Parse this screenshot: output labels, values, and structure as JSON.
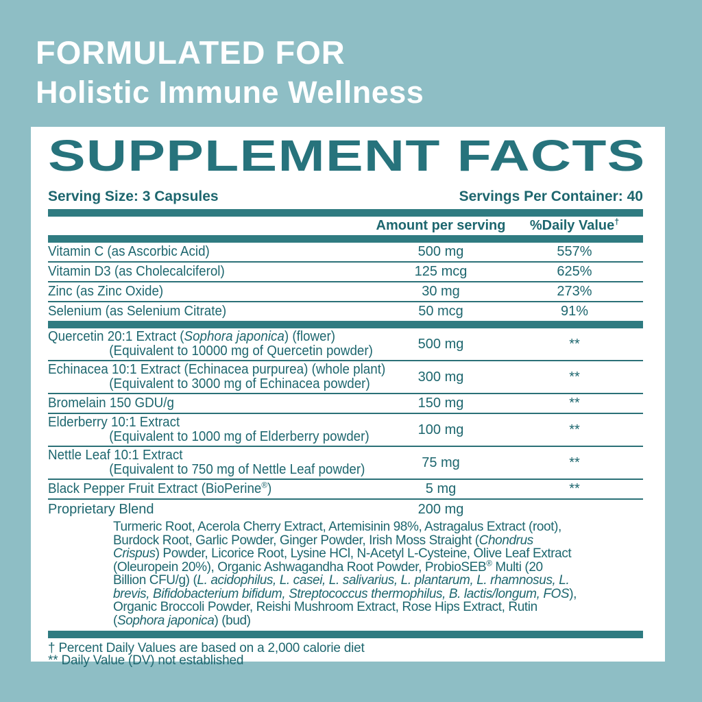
{
  "colors": {
    "background": "#8ebec5",
    "panel": "#ffffff",
    "text_teal": "#1d666e",
    "title_teal": "#27737c",
    "bar_teal": "#2f7b81"
  },
  "hero": {
    "line1": "FORMULATED FOR",
    "line2": "Holistic Immune Wellness"
  },
  "supplement_facts": {
    "title": "SUPPLEMENT FACTS",
    "serving_size": "Serving Size: 3 Capsules",
    "servings_per_container": "Servings Per Container: 40",
    "columns": {
      "amount": "Amount per serving",
      "daily_value": "%Daily Value",
      "daily_value_sup": "†"
    },
    "nutrients": [
      {
        "name_segs": [
          {
            "t": "Vitamin C (as Ascorbic Acid)"
          }
        ],
        "amount": "500 mg",
        "dv": "557%"
      },
      {
        "name_segs": [
          {
            "t": "Vitamin D3 (as Cholecalciferol)"
          }
        ],
        "amount": "125 mcg",
        "dv": "625%"
      },
      {
        "name_segs": [
          {
            "t": "Zinc (as Zinc Oxide)"
          }
        ],
        "amount": "30 mg",
        "dv": "273%"
      },
      {
        "name_segs": [
          {
            "t": "Selenium (as Selenium Citrate)"
          }
        ],
        "amount": "50 mcg",
        "dv": "91%"
      }
    ],
    "botanicals": [
      {
        "name_segs": [
          {
            "t": "Quercetin 20:1 Extract ("
          },
          {
            "t": "Sophora japonica",
            "i": true
          },
          {
            "t": ") (flower)"
          }
        ],
        "sub": "(Equivalent to 10000 mg of Quercetin powder)",
        "amount": "500 mg",
        "dv": "**"
      },
      {
        "name_segs": [
          {
            "t": "Echinacea 10:1 Extract (Echinacea purpurea) (whole plant)"
          }
        ],
        "sub": "(Equivalent to 3000 mg of Echinacea powder)",
        "amount": "300 mg",
        "dv": "**"
      },
      {
        "name_segs": [
          {
            "t": "Bromelain 150 GDU/g"
          }
        ],
        "sub": "",
        "amount": "150 mg",
        "dv": "**"
      },
      {
        "name_segs": [
          {
            "t": "Elderberry 10:1 Extract"
          }
        ],
        "sub": "(Equivalent to 1000 mg of Elderberry powder)",
        "amount": "100 mg",
        "dv": "**"
      },
      {
        "name_segs": [
          {
            "t": "Nettle Leaf 10:1 Extract"
          }
        ],
        "sub": "(Equivalent to 750 mg of Nettle Leaf powder)",
        "amount": "75 mg",
        "dv": "**"
      },
      {
        "name_segs": [
          {
            "t": "Black Pepper Fruit Extract (BioPerine"
          },
          {
            "t": "®",
            "sup": true
          },
          {
            "t": ")"
          }
        ],
        "sub": "",
        "amount": "5 mg",
        "dv": "**"
      }
    ],
    "proprietary": {
      "name": "Proprietary Blend",
      "amount": "200 mg",
      "dv": "",
      "ingredients_segs": [
        {
          "t": "Turmeric Root, Acerola Cherry Extract, Artemisinin 98%, Astragalus Extract (root), Burdock Root, Garlic Powder, Ginger Powder, Irish Moss Straight ("
        },
        {
          "t": "Chondrus Crispus",
          "i": true
        },
        {
          "t": ") Powder, Licorice Root, Lysine HCl, N-Acetyl L-Cysteine, Olive Leaf Extract (Oleuropein 20%), Organic Ashwagandha Root Powder, ProbioSEB"
        },
        {
          "t": "®",
          "sup": true
        },
        {
          "t": " Multi (20 Billion CFU/g) ("
        },
        {
          "t": "L. acidophilus, L. casei, L. salivarius, L. plantarum, L. rhamnosus, L. brevis, Bifidobacterium bifidum, Streptococcus thermophilus, B. lactis/longum, FOS",
          "i": true
        },
        {
          "t": "), Organic Broccoli Powder, Reishi Mushroom Extract, Rose Hips Extract, Rutin ("
        },
        {
          "t": "Sophora japonica",
          "i": true
        },
        {
          "t": ") (bud)"
        }
      ]
    },
    "footnotes": {
      "line1": "† Percent Daily Values are based on a 2,000 calorie diet",
      "line2": "** Daily Value (DV) not established"
    }
  }
}
